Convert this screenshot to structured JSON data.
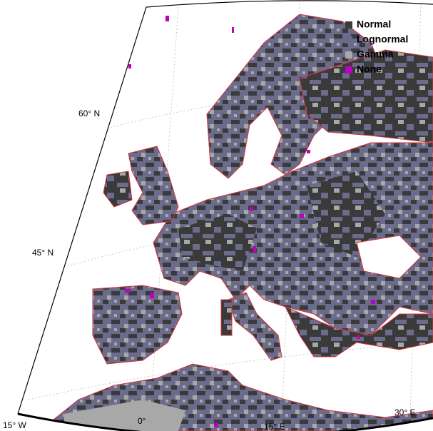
{
  "legend": [
    {
      "label": "Normal",
      "color": "#3a3a3a"
    },
    {
      "label": "Lognormal",
      "color": "#6b6b8c"
    },
    {
      "label": "Gamma",
      "color": "#a8a8a8"
    },
    {
      "label": "None",
      "color": "#c000c0"
    }
  ],
  "graticule_labels": [
    "60° N",
    "45° N",
    "15° W",
    "0°",
    "15° E",
    "30° E"
  ]
}
